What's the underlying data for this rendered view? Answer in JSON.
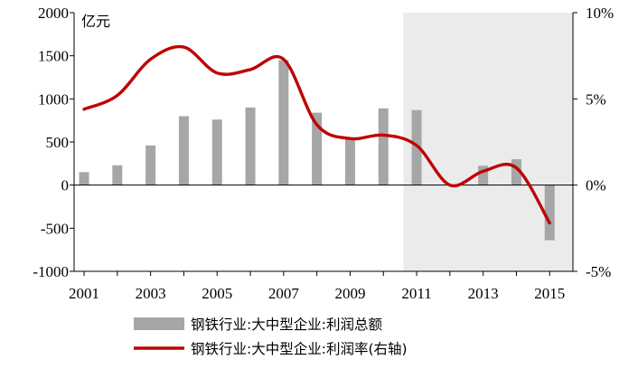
{
  "chart_data": {
    "type": "bar+line",
    "title": "",
    "left_unit": "亿元",
    "x": [
      2001,
      2002,
      2003,
      2004,
      2005,
      2006,
      2007,
      2008,
      2009,
      2010,
      2011,
      2012,
      2013,
      2014,
      2015
    ],
    "x_tick_labels": [
      "2001",
      "2003",
      "2005",
      "2007",
      "2009",
      "2011",
      "2013",
      "2015"
    ],
    "y_left": {
      "min": -1000,
      "max": 2000,
      "ticks": [
        -1000,
        -500,
        0,
        500,
        1000,
        1500,
        2000
      ],
      "tick_labels": [
        "-1000",
        "-500",
        "0",
        "500",
        "1000",
        "1500",
        "2000"
      ]
    },
    "y_right": {
      "min": -5,
      "max": 10,
      "ticks": [
        -5,
        0,
        5,
        10
      ],
      "tick_labels": [
        "-5%",
        "0%",
        "5%",
        "10%"
      ]
    },
    "shaded_region": {
      "x_from": 2010.6,
      "x_to": 2015.7,
      "color": "#ebebeb"
    },
    "series": [
      {
        "name": "钢铁行业:大中型企业:利润总额",
        "type": "bar",
        "axis": "left",
        "color": "#a6a6a6",
        "values": [
          150,
          230,
          460,
          800,
          760,
          900,
          1450,
          840,
          540,
          890,
          870,
          null,
          225,
          300,
          -640
        ]
      },
      {
        "name": "钢铁行业:大中型企业:利润率(右轴)",
        "type": "line",
        "axis": "right",
        "color": "#c00000",
        "x": [
          2001,
          2002,
          2003,
          2004,
          2005,
          2006,
          2007,
          2008,
          2009,
          2010,
          2011,
          2012,
          2013,
          2014,
          2015
        ],
        "values": [
          4.4,
          5.2,
          7.3,
          8.0,
          6.5,
          6.7,
          7.3,
          3.5,
          2.7,
          2.9,
          2.3,
          0.0,
          0.8,
          1.0,
          -2.2
        ]
      }
    ],
    "legend": {
      "position": "bottom"
    }
  }
}
